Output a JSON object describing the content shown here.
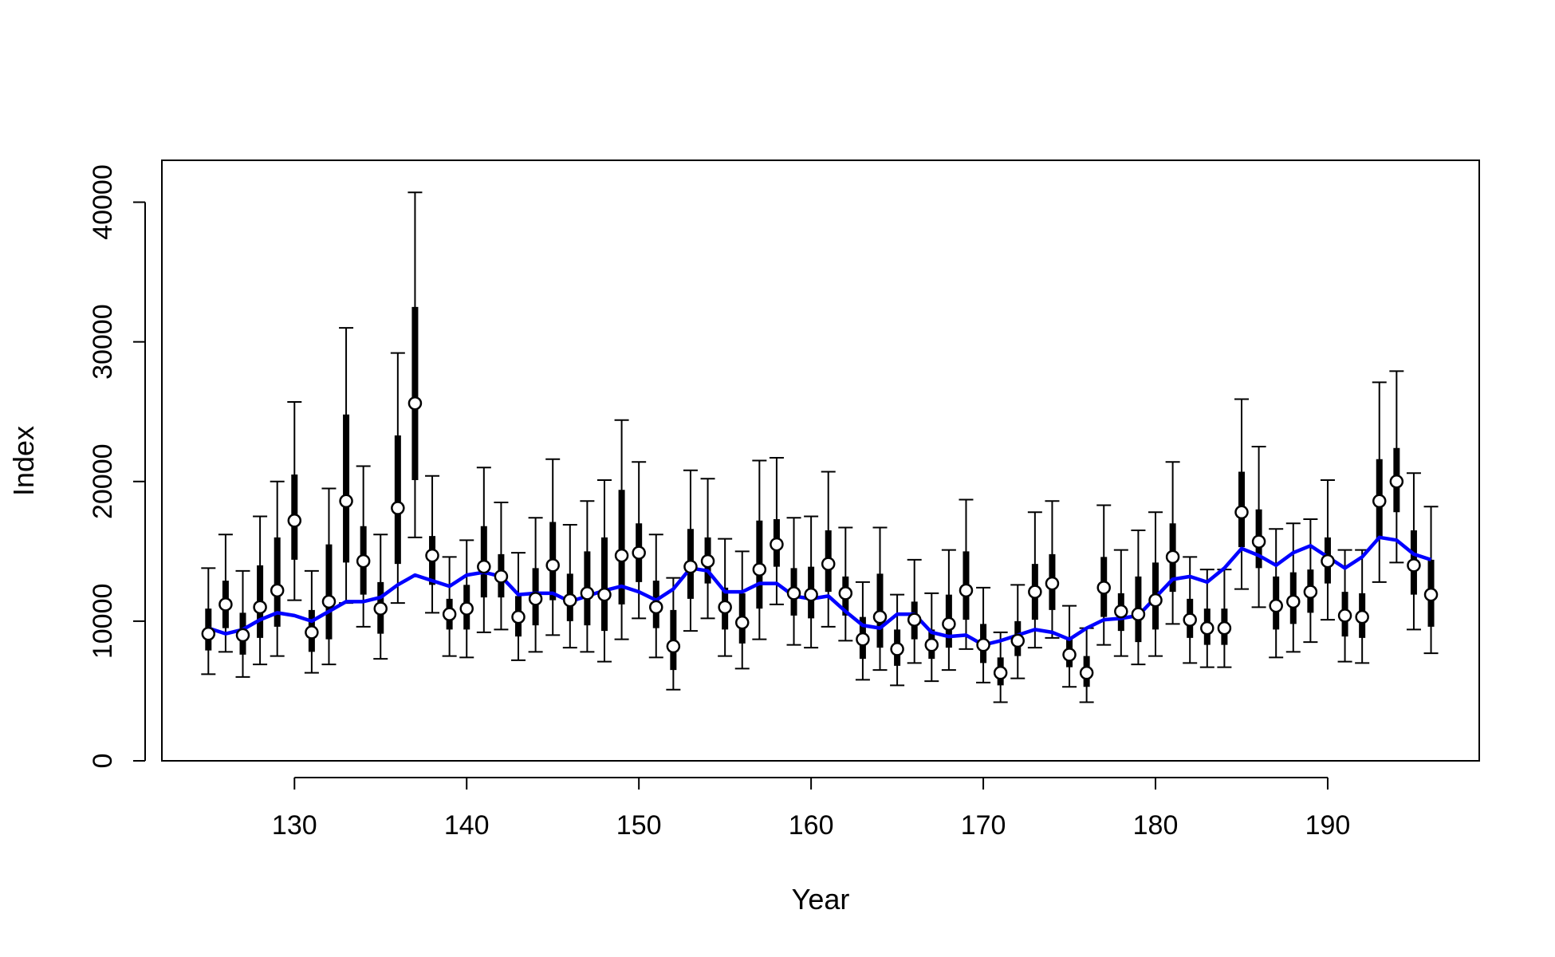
{
  "chart_data": {
    "type": "line",
    "title": "",
    "xlabel": "Year",
    "ylabel": "Index",
    "xlim": [
      122.3,
      198.8
    ],
    "ylim": [
      0,
      43000
    ],
    "x_ticks": [
      "130",
      "140",
      "150",
      "160",
      "170",
      "180",
      "190"
    ],
    "y_ticks": [
      "0",
      "10000",
      "20000",
      "30000",
      "40000"
    ],
    "grid": false,
    "legend": "none",
    "colors": {
      "trend": "#0000ff",
      "interval": "#000000",
      "point_fill": "#ffffff"
    },
    "x": [
      125,
      126,
      127,
      128,
      129,
      130,
      131,
      132,
      133,
      134,
      135,
      136,
      137,
      138,
      139,
      140,
      141,
      142,
      143,
      144,
      145,
      146,
      147,
      148,
      149,
      150,
      151,
      152,
      153,
      154,
      155,
      156,
      157,
      158,
      159,
      160,
      161,
      162,
      163,
      164,
      165,
      166,
      167,
      168,
      169,
      170,
      171,
      172,
      173,
      174,
      175,
      176,
      177,
      178,
      179,
      180,
      181,
      182,
      183,
      184,
      185,
      186,
      187,
      188,
      189,
      190,
      191,
      192,
      193,
      194,
      195,
      196
    ],
    "series": [
      {
        "values": [
          9100,
          11200,
          9000,
          11000,
          12200,
          17200,
          9200,
          11400,
          18600,
          14300,
          10900,
          18100,
          25600,
          14700,
          10500,
          10900,
          13900,
          13200,
          10300,
          11600,
          14000,
          11500,
          12000,
          11900,
          14700,
          14900,
          11000,
          8200,
          13900,
          14300,
          11000,
          9900,
          13700,
          15500,
          12000,
          11900,
          14100,
          12000,
          8700,
          10300,
          8000,
          10100,
          8300,
          9800,
          12200,
          8300,
          6300,
          8600,
          12100,
          12700,
          7600,
          6300,
          12400,
          10700,
          10500,
          11500,
          14600,
          10100,
          9500,
          9500,
          17800,
          15700,
          11100,
          11400,
          12100,
          14300,
          10400,
          10300,
          18600,
          20000,
          14000,
          11900
        ]
      },
      {
        "values": [
          9500,
          9100,
          9400,
          10100,
          10600,
          10400,
          10000,
          10700,
          11400,
          11400,
          11700,
          12600,
          13300,
          12900,
          12500,
          13300,
          13500,
          13200,
          11900,
          12000,
          12000,
          11400,
          11800,
          12200,
          12500,
          12100,
          11500,
          12300,
          13800,
          13600,
          12100,
          12100,
          12700,
          12700,
          11800,
          11600,
          11800,
          10700,
          9700,
          9500,
          10500,
          10500,
          9200,
          8900,
          9000,
          8300,
          8600,
          9000,
          9400,
          9200,
          8700,
          9500,
          10100,
          10200,
          10400,
          11700,
          13000,
          13200,
          12800,
          13800,
          15200,
          14700,
          14000,
          14900,
          15400,
          14600,
          13800,
          14600,
          16000,
          15800,
          14800,
          14400
        ]
      }
    ],
    "intervals": {
      "lower95": [
        6200,
        7800,
        6000,
        6900,
        7500,
        11500,
        6300,
        6900,
        11300,
        9600,
        7300,
        11300,
        16000,
        10600,
        7500,
        7400,
        9200,
        9400,
        7200,
        7800,
        9000,
        8100,
        7800,
        7100,
        8700,
        10200,
        7400,
        5100,
        9300,
        10200,
        7500,
        6600,
        8700,
        11200,
        8300,
        8100,
        9600,
        8600,
        5800,
        6500,
        5400,
        7000,
        5700,
        6500,
        8000,
        5600,
        4200,
        5900,
        8100,
        8800,
        5300,
        4200,
        8300,
        7500,
        6900,
        7500,
        9800,
        7000,
        6700,
        6700,
        12300,
        11000,
        7400,
        7800,
        8500,
        10100,
        7100,
        7000,
        12800,
        14200,
        9400,
        7700
      ],
      "upper95": [
        13800,
        16200,
        13600,
        17500,
        20000,
        25700,
        13600,
        19500,
        31000,
        21100,
        16200,
        29200,
        40700,
        20400,
        14600,
        15800,
        21000,
        18500,
        14900,
        17400,
        21600,
        16900,
        18600,
        20100,
        24400,
        21400,
        16200,
        13100,
        20800,
        20200,
        15900,
        15000,
        21500,
        21700,
        17400,
        17500,
        20700,
        16700,
        12800,
        16700,
        11900,
        14400,
        12000,
        15100,
        18700,
        12400,
        9200,
        12600,
        17800,
        18600,
        11100,
        9500,
        18300,
        15100,
        16500,
        17800,
        21400,
        14600,
        13700,
        13700,
        25900,
        22500,
        16600,
        17000,
        17300,
        20100,
        15100,
        15100,
        27100,
        27900,
        20600,
        18200
      ],
      "lower50": [
        7900,
        9500,
        7600,
        8800,
        9600,
        14400,
        7800,
        8700,
        14200,
        11900,
        9100,
        14100,
        20100,
        12600,
        9400,
        9400,
        11700,
        11700,
        8900,
        9700,
        11500,
        10000,
        9700,
        9300,
        11200,
        12800,
        9500,
        6500,
        11600,
        12700,
        9400,
        8400,
        10900,
        13900,
        10400,
        10200,
        12100,
        10400,
        7300,
        8100,
        6800,
        8700,
        7300,
        8100,
        10100,
        7000,
        5400,
        7500,
        10100,
        10800,
        6700,
        5300,
        10300,
        9300,
        8500,
        9400,
        12100,
        8800,
        8300,
        8300,
        15300,
        13800,
        9400,
        9800,
        10600,
        12700,
        8900,
        8800,
        15900,
        17800,
        11900,
        9600
      ],
      "upper50": [
        10900,
        12900,
        10600,
        14000,
        16000,
        20500,
        10800,
        15500,
        24800,
        16800,
        12800,
        23300,
        32500,
        16100,
        11600,
        12600,
        16800,
        14800,
        11800,
        13800,
        17100,
        13400,
        15000,
        16000,
        19400,
        17000,
        12900,
        10800,
        16600,
        16000,
        12400,
        12000,
        17200,
        17300,
        13800,
        13900,
        16500,
        13200,
        10300,
        13400,
        9400,
        11400,
        9400,
        11900,
        15000,
        9800,
        7400,
        10000,
        14100,
        14800,
        8800,
        7500,
        14600,
        12000,
        13200,
        14200,
        17000,
        11600,
        10900,
        10900,
        20700,
        18000,
        13200,
        13500,
        13700,
        16000,
        12100,
        12000,
        21600,
        22400,
        16500,
        14400
      ]
    }
  }
}
